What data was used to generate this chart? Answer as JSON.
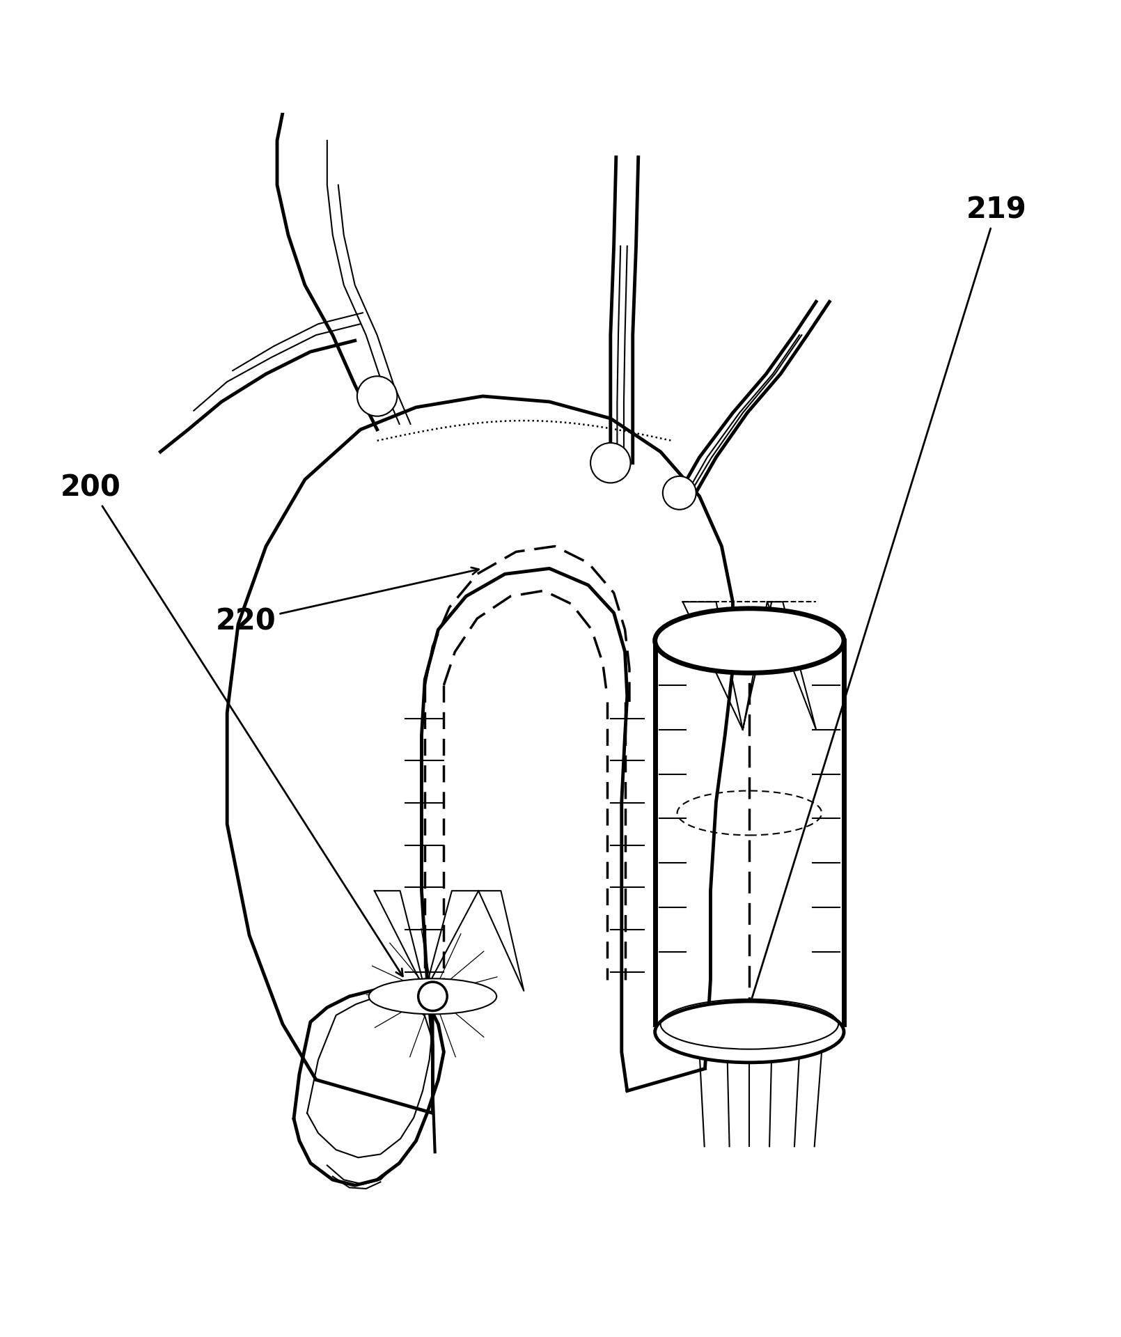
{
  "bg_color": "#ffffff",
  "line_color": "#000000",
  "label_220": "220",
  "label_200": "200",
  "label_219": "219",
  "figsize": [
    16.1,
    19.2
  ],
  "dpi": 100
}
